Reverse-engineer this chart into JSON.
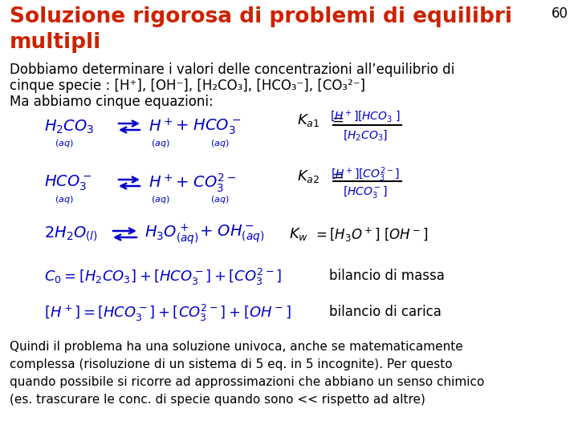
{
  "title_line1": "Soluzione rigorosa di problemi di equilibri",
  "title_line2": "multipli",
  "title_color": "#CC2200",
  "slide_number": "60",
  "body_color": "#000000",
  "chem_color": "#0000CC",
  "bg_color": "#FFFFFF",
  "footer1": "Quindi il problema ha una soluzione univoca, anche se matematicamente",
  "footer2": "complessa (risoluzione di un sistema di 5 eq. in 5 incognite). Per questo",
  "footer3": "quando possibile si ricorre ad approssimazioni che abbiano un senso chimico",
  "footer4": "(es. trascurare le conc. di specie quando sono << rispetto ad altre)"
}
